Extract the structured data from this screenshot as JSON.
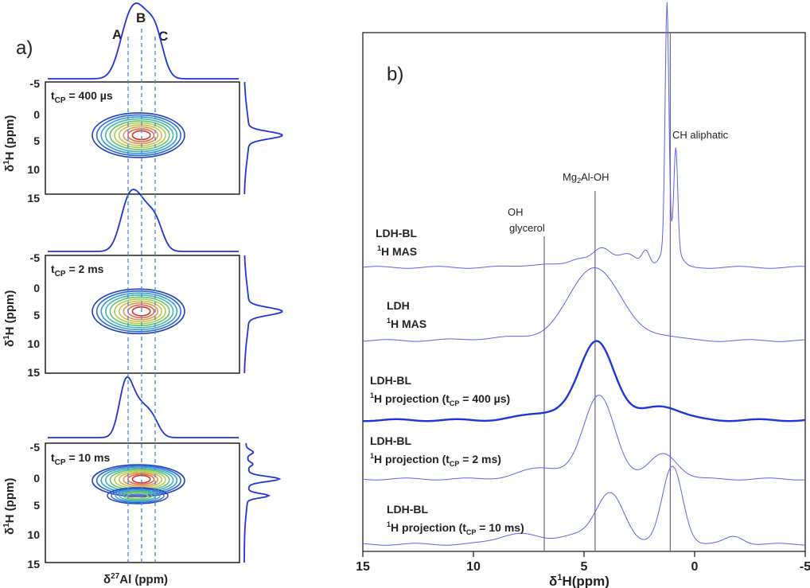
{
  "chart_data": [
    {
      "panel": "a)",
      "type": "contour",
      "letters": [
        "A",
        "B",
        "C"
      ],
      "xlabel_pre": "δ",
      "xlabel_sup": "27",
      "xlabel_post": "Al (ppm)",
      "ylabel_pre": "δ",
      "ylabel_sup": "1",
      "ylabel_post": "H (ppm)",
      "ylim": [
        -5,
        15
      ],
      "yticks": [
        "-5",
        "0",
        "5",
        "10",
        "15"
      ],
      "subplots": [
        {
          "label_pre": "t",
          "label_sub": "CP",
          "label_post": " = 400 µs",
          "contour_center_ppm": 4.5,
          "second_lobe_ppm": null
        },
        {
          "label_pre": "t",
          "label_sub": "CP",
          "label_post": " = 2 ms",
          "contour_center_ppm": 4.5,
          "second_lobe_ppm": null
        },
        {
          "label_pre": "t",
          "label_sub": "CP",
          "label_post": " = 10 ms",
          "contour_center_ppm": 1.0,
          "second_lobe_ppm": 3.8
        }
      ],
      "contour_colors": [
        "#1f3fbf",
        "#2d67d6",
        "#3a9ad8",
        "#40b8b0",
        "#6cc068",
        "#a9cf58",
        "#c8c050",
        "#d89a50",
        "#de6a48",
        "#d8302e"
      ]
    },
    {
      "panel": "b)",
      "type": "line",
      "xlabel_pre": "δ",
      "xlabel_sup": "1",
      "xlabel_post": "H(ppm)",
      "xlim": [
        15,
        -5
      ],
      "xticks": [
        {
          "value": 15,
          "label": "15"
        },
        {
          "value": 10,
          "label": "10"
        },
        {
          "value": 5,
          "label": "5"
        },
        {
          "value": 0,
          "label": "0"
        },
        {
          "value": -5,
          "label": "-5"
        }
      ],
      "vlines": [
        6.8,
        4.5,
        1.1
      ],
      "annotations": {
        "oh1": "OH",
        "oh2": "glycerol",
        "mg_pre": "Mg",
        "mg_sub": "2",
        "mg_post": "Al-OH",
        "ch": "CH aliphatic"
      },
      "series": [
        {
          "name": "LDH-BL / 1H MAS",
          "line1": "LDH-BL",
          "line2_sup": "1",
          "line2_pre": "H MAS",
          "line2_sub": "",
          "line2_post": "",
          "peaks": [
            {
              "center": 7.0,
              "width": 1.2,
              "height": 4
            },
            {
              "center": 5.2,
              "width": 0.6,
              "height": 10
            },
            {
              "center": 4.2,
              "width": 0.6,
              "height": 24
            },
            {
              "center": 3.0,
              "width": 0.6,
              "height": 16
            },
            {
              "center": 2.2,
              "width": 0.25,
              "height": 20
            },
            {
              "center": 1.25,
              "width": 0.12,
              "height": 302
            },
            {
              "center": 0.85,
              "width": 0.12,
              "height": 123
            },
            {
              "center": 1.1,
              "width": 0.5,
              "height": 34
            }
          ]
        },
        {
          "name": "LDH / 1H MAS",
          "line1": "LDH",
          "line2_sup": "1",
          "line2_pre": "H MAS",
          "line2_sub": "",
          "line2_post": "",
          "peaks": [
            {
              "center": 4.5,
              "width": 1.6,
              "height": 92
            },
            {
              "center": 8.0,
              "width": 2.5,
              "height": 4
            },
            {
              "center": 1.5,
              "width": 1.0,
              "height": 6
            }
          ]
        },
        {
          "name": "LDH-BL / 1H projection (tCP = 400 µs)",
          "line1": "LDH-BL",
          "line2_sup": "1",
          "line2_pre": "H projection (t",
          "line2_sub": "CP",
          "line2_post": " = 400 µs)",
          "peaks": [
            {
              "center": 4.4,
              "width": 1.1,
              "height": 98
            },
            {
              "center": 6.5,
              "width": 1.6,
              "height": 10
            },
            {
              "center": 1.5,
              "width": 1.2,
              "height": 18
            }
          ]
        },
        {
          "name": "LDH-BL / 1H projection (tCP = 2 ms)",
          "line1": "LDH-BL",
          "line2_sup": "1",
          "line2_pre": "H projection (t",
          "line2_sub": "CP",
          "line2_post": " = 2 ms)",
          "peaks": [
            {
              "center": 4.3,
              "width": 1.0,
              "height": 104
            },
            {
              "center": 6.8,
              "width": 1.5,
              "height": 14
            },
            {
              "center": 1.4,
              "width": 0.9,
              "height": 32
            }
          ]
        },
        {
          "name": "LDH-BL / 1H projection (tCP = 10 ms)",
          "line1": "LDH-BL",
          "line2_sup": "1",
          "line2_pre": "H projection (t",
          "line2_sub": "CP",
          "line2_post": " = 10 ms)",
          "peaks": [
            {
              "center": 1.0,
              "width": 0.65,
              "height": 98
            },
            {
              "center": 3.8,
              "width": 0.9,
              "height": 64
            },
            {
              "center": 8.0,
              "width": 1.2,
              "height": 14
            },
            {
              "center": -1.8,
              "width": 0.6,
              "height": 10
            },
            {
              "center": 5.5,
              "width": 1.0,
              "height": 12
            }
          ]
        }
      ]
    }
  ]
}
